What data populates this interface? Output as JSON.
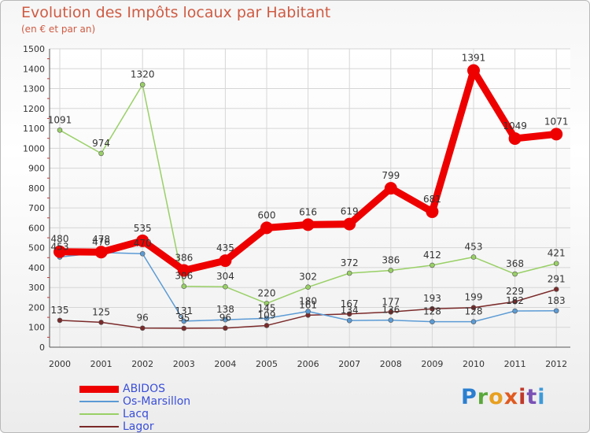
{
  "header": {
    "title": "Evolution des Impôts locaux par Habitant",
    "subtitle": "(en € et par an)"
  },
  "brand": {
    "letters": [
      "P",
      "r",
      "o",
      "x",
      "i",
      "t",
      "i"
    ],
    "colors": [
      "#2a7fd0",
      "#5aa83a",
      "#e8a020",
      "#e05a20",
      "#c0392b",
      "#7a52b5",
      "#3d9ad9"
    ]
  },
  "chart_data": {
    "type": "line",
    "title": "Evolution des Impôts locaux par Habitant",
    "subtitle": "(en € et par an)",
    "categories": [
      "2000",
      "2001",
      "2002",
      "2003",
      "2004",
      "2005",
      "2006",
      "2007",
      "2008",
      "2009",
      "2010",
      "2011",
      "2012"
    ],
    "ylim": [
      0,
      1500
    ],
    "yticks": [
      0,
      100,
      200,
      300,
      400,
      500,
      600,
      700,
      800,
      900,
      1000,
      1100,
      1200,
      1300,
      1400,
      1500
    ],
    "grid": true,
    "legend_position": "bottom-left",
    "series": [
      {
        "name": "ABIDOS",
        "color": "#ee0000",
        "values": [
          480,
          478,
          535,
          386,
          435,
          600,
          616,
          619,
          799,
          681,
          1391,
          1049,
          1071
        ],
        "labels": [
          "480",
          "478",
          "535",
          "386",
          "435",
          "600",
          "616",
          "619",
          "799",
          "681",
          "1391",
          "1049",
          "1071"
        ]
      },
      {
        "name": "Os-Marsillon",
        "color": "#5b9bd5",
        "values": [
          453,
          476,
          470,
          131,
          138,
          145,
          180,
          134,
          136,
          128,
          128,
          182,
          183
        ],
        "labels": [
          "453",
          "476",
          "470",
          "131",
          "138",
          "145",
          "180",
          "134",
          "136",
          "128",
          "128",
          "182",
          "183"
        ]
      },
      {
        "name": "Lacq",
        "color": "#99d066",
        "values": [
          1091,
          974,
          1320,
          306,
          304,
          220,
          302,
          372,
          386,
          412,
          453,
          368,
          421
        ],
        "labels": [
          "1091",
          "974",
          "1320",
          "306",
          "304",
          "220",
          "302",
          "372",
          "386",
          "412",
          "453",
          "368",
          "421"
        ]
      },
      {
        "name": "Lagor",
        "color": "#7b2a2a",
        "values": [
          135,
          125,
          96,
          95,
          96,
          109,
          161,
          167,
          177,
          193,
          199,
          229,
          291
        ],
        "labels": [
          "135",
          "125",
          "96",
          "95",
          "96",
          "109",
          "161",
          "167",
          "177",
          "193",
          "199",
          "229",
          "291"
        ]
      }
    ]
  }
}
